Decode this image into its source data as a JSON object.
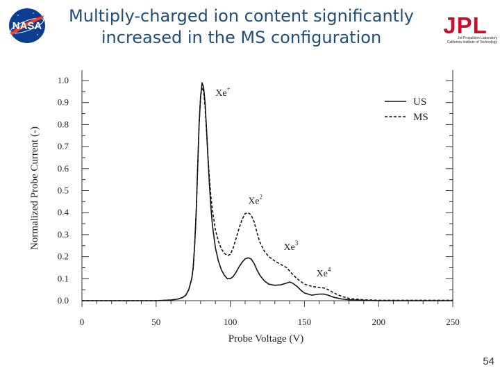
{
  "slide": {
    "title_line1": "Multiply-charged ion content significantly",
    "title_line2": "increased in the MS configuration",
    "page_number": "54",
    "nasa_logo_text": "NASA",
    "jpl_logo_text": "JPL",
    "jpl_sub1": "Jet Propulsion Laboratory",
    "jpl_sub2": "California Institute of Technology"
  },
  "chart_data": {
    "type": "line",
    "xlabel": "Probe Voltage (V)",
    "ylabel": "Normalized Probe Current (-)",
    "xlim": [
      0,
      250
    ],
    "ylim": [
      0,
      1.0
    ],
    "xticks": [
      0,
      50,
      100,
      150,
      200,
      250
    ],
    "yticks": [
      0.0,
      0.1,
      0.2,
      0.3,
      0.4,
      0.5,
      0.6,
      0.7,
      0.8,
      0.9,
      1.0
    ],
    "legend_position": "top-right",
    "grid": false,
    "series": [
      {
        "name": "US",
        "style": "solid",
        "x": [
          0,
          50,
          60,
          65,
          68,
          70,
          72,
          74,
          75,
          76,
          77,
          78,
          79,
          80,
          81,
          82,
          83,
          84,
          85,
          86,
          87,
          88,
          90,
          92,
          94,
          96,
          98,
          100,
          102,
          104,
          106,
          108,
          110,
          112,
          114,
          116,
          118,
          120,
          123,
          126,
          130,
          134,
          138,
          140,
          142,
          145,
          148,
          150,
          155,
          160,
          163,
          166,
          170,
          175,
          180,
          190,
          200,
          250
        ],
        "y": [
          0.0,
          0.0,
          0.003,
          0.008,
          0.015,
          0.025,
          0.05,
          0.1,
          0.15,
          0.25,
          0.4,
          0.6,
          0.8,
          0.93,
          0.99,
          0.97,
          0.9,
          0.78,
          0.64,
          0.52,
          0.42,
          0.34,
          0.24,
          0.18,
          0.14,
          0.115,
          0.1,
          0.1,
          0.11,
          0.13,
          0.155,
          0.175,
          0.19,
          0.195,
          0.19,
          0.17,
          0.14,
          0.115,
          0.09,
          0.075,
          0.07,
          0.072,
          0.08,
          0.085,
          0.08,
          0.065,
          0.045,
          0.035,
          0.025,
          0.03,
          0.03,
          0.025,
          0.015,
          0.008,
          0.004,
          0.002,
          0.0,
          0.0
        ]
      },
      {
        "name": "MS",
        "style": "dashed",
        "x": [
          0,
          50,
          60,
          65,
          68,
          70,
          72,
          74,
          75,
          76,
          77,
          78,
          79,
          80,
          81,
          82,
          83,
          84,
          85,
          86,
          87,
          88,
          90,
          92,
          94,
          96,
          98,
          100,
          102,
          104,
          106,
          108,
          110,
          112,
          114,
          116,
          118,
          120,
          123,
          126,
          130,
          134,
          138,
          140,
          142,
          145,
          148,
          150,
          155,
          160,
          163,
          166,
          170,
          175,
          180,
          190,
          200,
          250
        ],
        "y": [
          0.0,
          0.0,
          0.003,
          0.008,
          0.015,
          0.025,
          0.05,
          0.1,
          0.15,
          0.25,
          0.4,
          0.6,
          0.8,
          0.93,
          0.97,
          0.95,
          0.88,
          0.77,
          0.65,
          0.55,
          0.47,
          0.41,
          0.32,
          0.27,
          0.235,
          0.215,
          0.205,
          0.21,
          0.24,
          0.285,
          0.33,
          0.37,
          0.395,
          0.4,
          0.39,
          0.36,
          0.31,
          0.265,
          0.225,
          0.2,
          0.18,
          0.165,
          0.15,
          0.135,
          0.12,
          0.1,
          0.085,
          0.075,
          0.065,
          0.06,
          0.058,
          0.05,
          0.035,
          0.02,
          0.01,
          0.004,
          0.002,
          0.002
        ]
      }
    ],
    "annotations": [
      {
        "text": "Xe",
        "sup": "+",
        "x": 90,
        "y": 0.93
      },
      {
        "text": "Xe",
        "sup": "2",
        "x": 112,
        "y": 0.44
      },
      {
        "text": "Xe",
        "sup": "3",
        "x": 136,
        "y": 0.23
      },
      {
        "text": "Xe",
        "sup": "4",
        "x": 158,
        "y": 0.11
      }
    ]
  }
}
